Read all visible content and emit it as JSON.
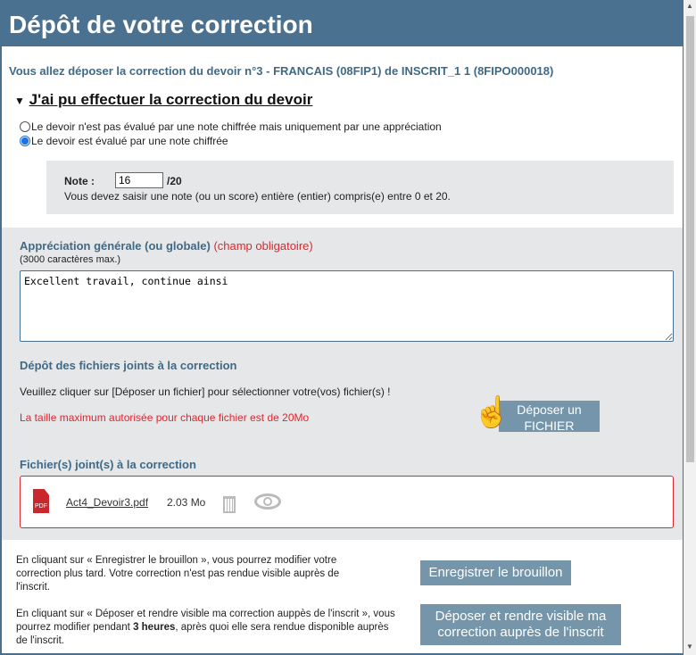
{
  "header": {
    "title": "Dépôt de votre correction"
  },
  "intro": "Vous allez déposer la correction du devoir n°3 - FRANCAIS (08FIP1) de INSCRIT_1 1 (8FIPO000018)",
  "section_title": "J'ai pu effectuer la correction du devoir",
  "radios": [
    {
      "label": "Le devoir n'est pas évalué par une note chiffrée mais uniquement par une appréciation",
      "checked": false
    },
    {
      "label": "Le devoir est évalué par une note chiffrée",
      "checked": true
    }
  ],
  "note": {
    "label": "Note :",
    "value": "16",
    "max": "/20",
    "hint": "Vous devez saisir une note (ou un score) entière (entier) compris(e) entre 0 et 20."
  },
  "appreciation": {
    "label": "Appréciation générale (ou globale)",
    "required": "(champ obligatoire)",
    "limit": "(3000 caractères max.)",
    "value": "Excellent travail, continue ainsi"
  },
  "upload": {
    "title": "Dépôt des fichiers joints à la correction",
    "instruction": "Veuillez cliquer sur [Déposer un fichier] pour sélectionner votre(vos) fichier(s) !",
    "max_size": "La taille maximum autorisée pour chaque fichier est de 20Mo",
    "button_line1": "Déposer un",
    "button_line2": "FICHIER"
  },
  "files": {
    "title": "Fichier(s) joint(s) à la correction",
    "items": [
      {
        "name": "Act4_Devoir3.pdf",
        "size": "2.03 Mo",
        "icon": "pdf-icon"
      }
    ]
  },
  "draft": {
    "text": "En cliquant sur « Enregistrer le brouillon », vous pourrez modifier votre correction plus tard. Votre correction n'est pas rendue visible auprès de l'inscrit.",
    "button": "Enregistrer le brouillon"
  },
  "publish": {
    "text_before": "En cliquant sur « Déposer et rendre visible ma correction auppès de l'inscrit », vous pourrez modifier pendant ",
    "bold": "3 heures",
    "text_after": ", après quoi elle sera rendue disponible auprès de l'inscrit.",
    "button": "Déposer et rendre visible ma correction auprès de l'inscrit"
  },
  "colors": {
    "accent": "#4b7191",
    "button": "#7495aa",
    "error": "#e0262d"
  }
}
